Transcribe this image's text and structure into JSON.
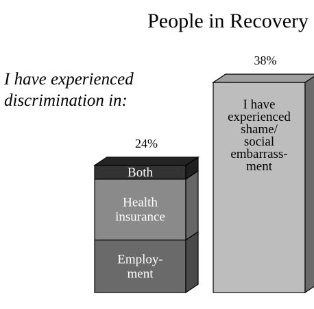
{
  "chart_data": {
    "type": "bar",
    "title": "People in Recovery",
    "subtitle": "I have experienced discrimination in:",
    "ylim": [
      0,
      38
    ],
    "stacked": true,
    "bars": [
      {
        "total_label": "24%",
        "total": 24,
        "segments": [
          {
            "name": "Employ-\nment",
            "value": 9.5,
            "front": "#6a6a6a",
            "side": "#4a4a4a",
            "text_color": "#ffffff"
          },
          {
            "name": "Health\ninsurance",
            "value": 11,
            "front": "#8a8a8a",
            "side": "#666666",
            "text_color": "#ffffff"
          },
          {
            "name": "Both",
            "value": 2.5,
            "front": "#333333",
            "side": "#1f1f1f",
            "top": "#242424",
            "text_color": "#ffffff"
          }
        ]
      },
      {
        "total_label": "38%",
        "total": 38,
        "segments": [
          {
            "name": "I have\nexperienced\nshame/\nsocial\nembarrass-\nment",
            "value": 38,
            "front": "#bdbdbd",
            "side": "#6b6b6b",
            "top": "#9e9e9e",
            "text_color": "#000000"
          }
        ]
      }
    ]
  }
}
